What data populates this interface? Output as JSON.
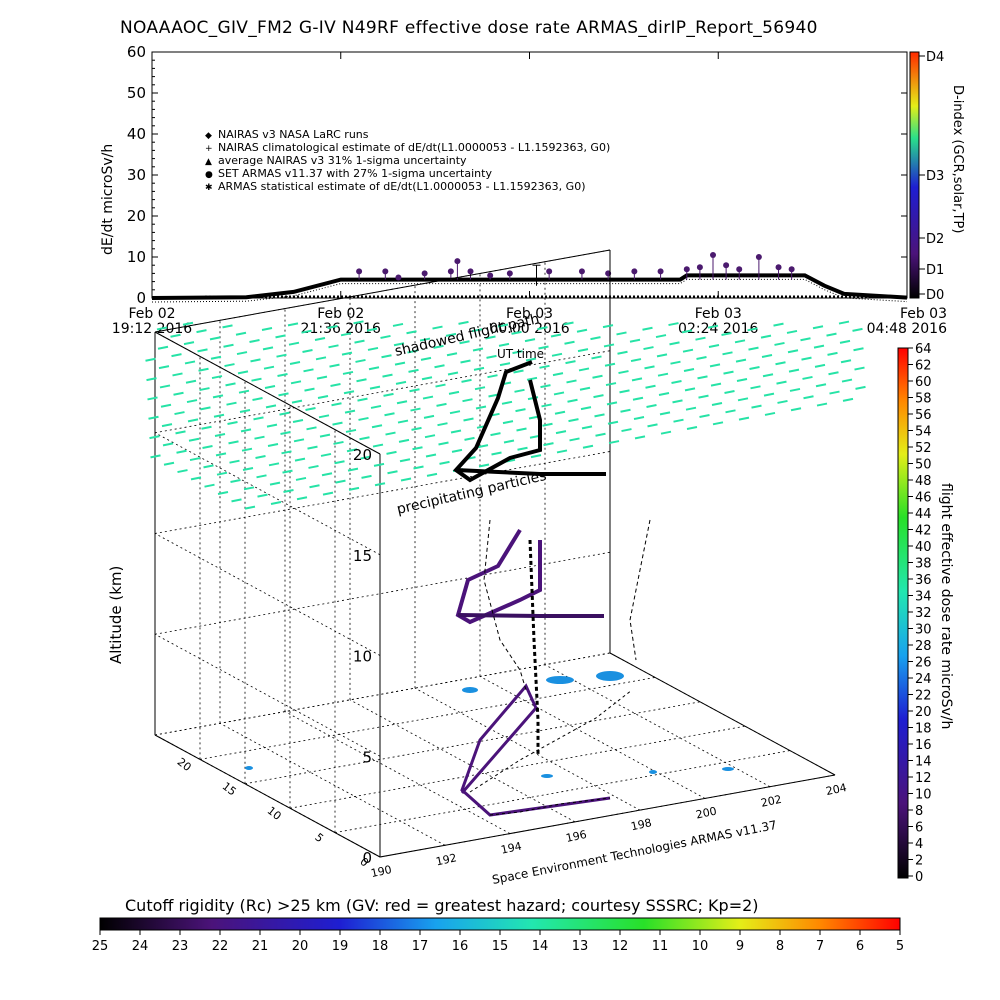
{
  "title": "NOAAAOC_GIV_FM2 G-IV    N49RF   effective dose rate ARMAS_dirIP_Report_56940",
  "chart_data": [
    {
      "type": "line",
      "ylabel": "dE/dt microSv/h",
      "xlabel": "UT time",
      "ylim": [
        0,
        60
      ],
      "yticks": [
        "0",
        "10",
        "20",
        "30",
        "40",
        "50",
        "60"
      ],
      "xticks": [
        {
          "top": "Feb 02",
          "bottom": "19:12 2016"
        },
        {
          "top": "Feb 02",
          "bottom": "21:36 2016"
        },
        {
          "top": "Feb 03",
          "bottom": "00:00 2016"
        },
        {
          "top": "Feb 03",
          "bottom": "02:24 2016"
        },
        {
          "top": "Feb 03",
          "bottom": "04:48 2016"
        }
      ],
      "legend_position": "top-left",
      "legend": [
        {
          "symbol": "◆",
          "label": "NAIRAS v3 NASA LaRC runs"
        },
        {
          "symbol": "+",
          "label": "NAIRAS climatological estimate of dE/dt(L1.0000053 - L1.1592363, G0)"
        },
        {
          "symbol": "▲",
          "label": "average NAIRAS v3 31% 1-sigma uncertainty"
        },
        {
          "symbol": "●",
          "label": "SET ARMAS v11.37 with 27% 1-sigma uncertainty"
        },
        {
          "symbol": "✱",
          "label": "ARMAS statistical estimate of dE/dt(L1.0000053 - L1.1592363, G0)"
        }
      ],
      "right_axis": {
        "label": "D-index (GCR,solar,TP)",
        "ticks": [
          "D0",
          "D1",
          "D2",
          "D3",
          "D4"
        ]
      },
      "series": [
        {
          "label": "ARMAS statistical estimate",
          "color": "#000000",
          "x": [
            "Feb 02 19:12",
            "Feb 02 20:24",
            "Feb 02 21:00",
            "Feb 02 21:36",
            "Feb 02 22:00",
            "Feb 02 23:00",
            "Feb 03 00:00",
            "Feb 03 01:00",
            "Feb 03 01:55",
            "Feb 03 02:00",
            "Feb 03 03:00",
            "Feb 03 03:30",
            "Feb 03 03:45",
            "Feb 03 04:00",
            "Feb 03 04:48"
          ],
          "y": [
            0.0,
            0.2,
            1.5,
            4.5,
            4.5,
            4.5,
            4.5,
            4.5,
            4.5,
            5.5,
            5.5,
            5.5,
            3.0,
            1.0,
            0.1
          ]
        },
        {
          "label": "SET ARMAS v11.37 measurements",
          "color": "#4b1a6e",
          "x": [
            "Feb 02 21:50",
            "Feb 02 22:10",
            "Feb 02 22:20",
            "Feb 02 22:40",
            "Feb 02 23:00",
            "Feb 02 23:05",
            "Feb 02 23:15",
            "Feb 02 23:30",
            "Feb 02 23:45",
            "Feb 03 00:15",
            "Feb 03 00:40",
            "Feb 03 01:00",
            "Feb 03 01:20",
            "Feb 03 01:40",
            "Feb 03 02:00",
            "Feb 03 02:10",
            "Feb 03 02:20",
            "Feb 03 02:30",
            "Feb 03 02:40",
            "Feb 03 02:55",
            "Feb 03 03:10",
            "Feb 03 03:20"
          ],
          "y": [
            6.5,
            6.5,
            5.0,
            6.0,
            6.5,
            9.0,
            6.5,
            5.5,
            6.0,
            6.5,
            6.5,
            6.0,
            6.5,
            6.5,
            7.0,
            7.5,
            10.5,
            8.0,
            7.0,
            10.0,
            7.5,
            7.0
          ]
        }
      ]
    },
    {
      "type": "scatter",
      "ylabel": "Altitude (km)",
      "zticks": [
        "0",
        "5",
        "10",
        "15",
        "20"
      ],
      "rigidity_ticks": [
        "0",
        "5",
        "10",
        "15",
        "20"
      ],
      "longitude_ticks": [
        "190",
        "192",
        "194",
        "196",
        "198",
        "200",
        "202",
        "204"
      ],
      "annotations": [
        "shadowed flight path",
        "precipitating particles"
      ],
      "caption": "Space Environment Technologies ARMAS v11.37"
    },
    {
      "type": "heatmap",
      "label": "flight effective dose rate microSv/h",
      "ticks": [
        "0",
        "2",
        "4",
        "6",
        "8",
        "10",
        "12",
        "14",
        "16",
        "18",
        "20",
        "22",
        "24",
        "26",
        "28",
        "30",
        "32",
        "34",
        "36",
        "38",
        "40",
        "42",
        "44",
        "46",
        "48",
        "50",
        "52",
        "54",
        "56",
        "58",
        "60",
        "62",
        "64"
      ]
    },
    {
      "type": "heatmap",
      "label": "Cutoff rigidity (Rc) >25 km (GV: red = greatest hazard; courtesy SSSRC; Kp=2)",
      "ticks": [
        "25",
        "24",
        "23",
        "22",
        "21",
        "20",
        "19",
        "18",
        "17",
        "16",
        "15",
        "14",
        "13",
        "12",
        "11",
        "10",
        "9",
        "8",
        "7",
        "6",
        "5"
      ]
    }
  ]
}
